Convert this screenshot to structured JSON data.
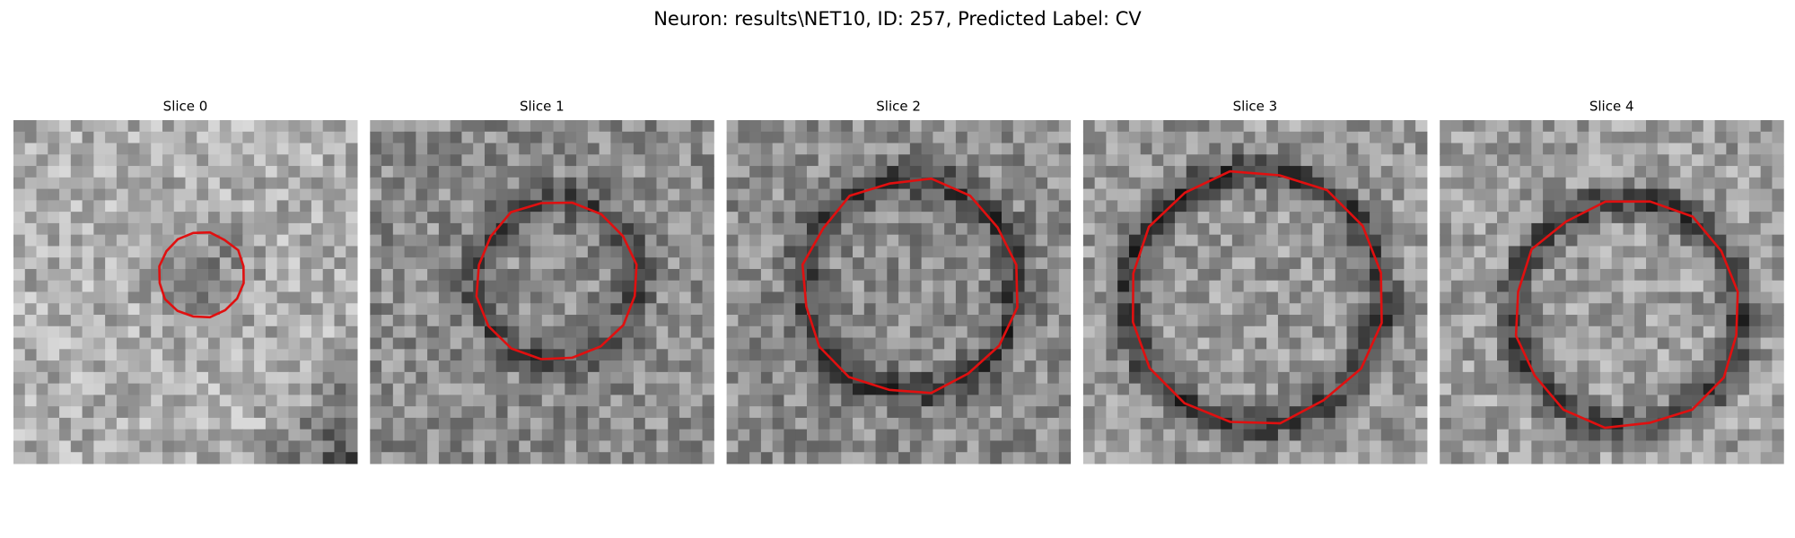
{
  "header": {
    "title": "Neuron: results\\NET10, ID: 257, Predicted Label: CV"
  },
  "panels": [
    {
      "title": "Slice 0"
    },
    {
      "title": "Slice 1"
    },
    {
      "title": "Slice 2"
    },
    {
      "title": "Slice 3"
    },
    {
      "title": "Slice 4"
    }
  ]
}
